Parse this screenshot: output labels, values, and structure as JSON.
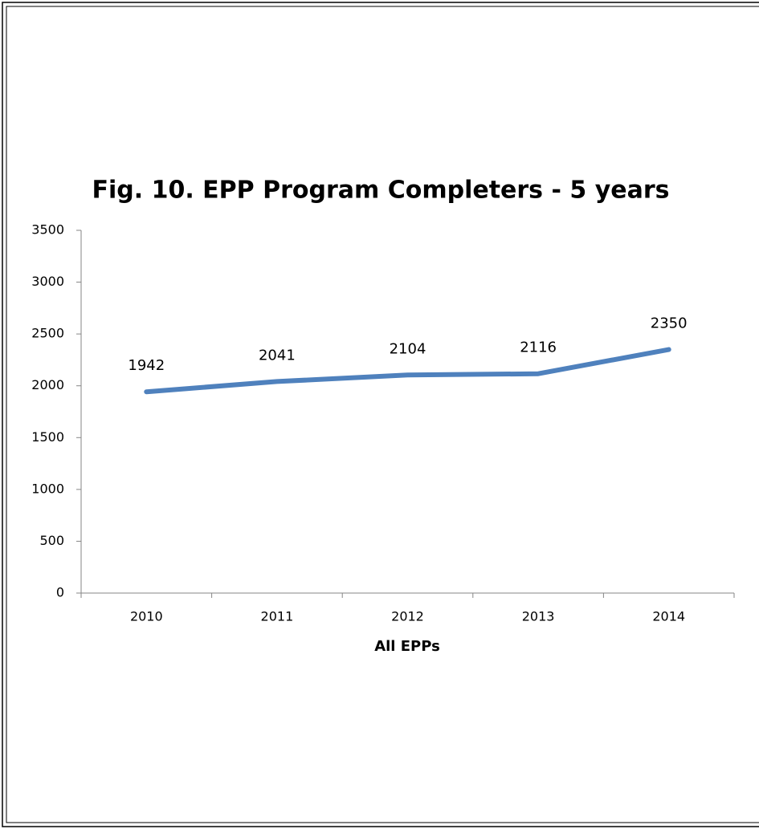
{
  "chart_data": {
    "type": "line",
    "title": "Fig. 10. EPP Program Completers - 5 years",
    "xlabel": "All EPPs",
    "categories": [
      "2010",
      "2011",
      "2012",
      "2013",
      "2014"
    ],
    "series": [
      {
        "name": "All EPPs",
        "color": "#4f81bd",
        "values": [
          1942,
          2041,
          2104,
          2116,
          2350
        ]
      }
    ],
    "ylim": [
      0,
      3500
    ],
    "yticks": [
      0,
      500,
      1000,
      1500,
      2000,
      2500,
      3000,
      3500
    ],
    "grid": false
  }
}
